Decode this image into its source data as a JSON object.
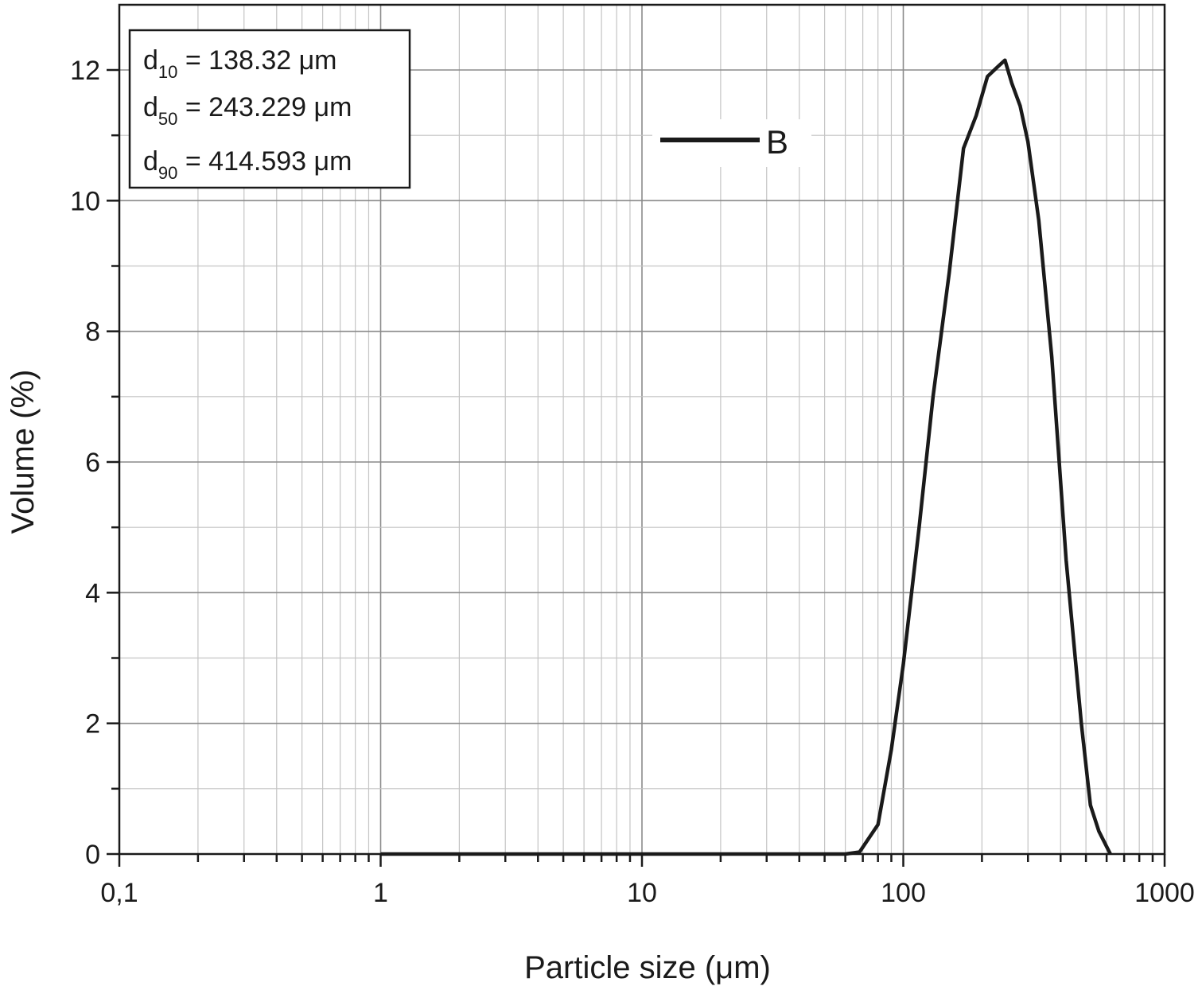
{
  "chart_data": {
    "type": "line",
    "xlabel": "Particle size (μm)",
    "ylabel": "Volume (%)",
    "x_scale": "log",
    "xlim": [
      0.1,
      1000
    ],
    "ylim": [
      0,
      12.9
    ],
    "x_ticks": [
      {
        "value": 0.1,
        "label": "0,1"
      },
      {
        "value": 1,
        "label": "1"
      },
      {
        "value": 10,
        "label": "10"
      },
      {
        "value": 100,
        "label": "100"
      },
      {
        "value": 1000,
        "label": "1000"
      }
    ],
    "y_ticks": [
      {
        "value": 0,
        "label": "0"
      },
      {
        "value": 2,
        "label": "2"
      },
      {
        "value": 4,
        "label": "4"
      },
      {
        "value": 6,
        "label": "6"
      },
      {
        "value": 8,
        "label": "8"
      },
      {
        "value": 10,
        "label": "10"
      },
      {
        "value": 12,
        "label": "12"
      }
    ],
    "grid": true,
    "legend_position": "top-center",
    "series": [
      {
        "name": "B",
        "color": "#1a1a1a",
        "x": [
          1,
          60,
          68,
          80,
          90,
          100,
          115,
          130,
          150,
          170,
          190,
          210,
          230,
          245,
          260,
          280,
          300,
          330,
          370,
          420,
          480,
          520,
          560,
          620
        ],
        "y": [
          0,
          0,
          0.03,
          0.45,
          1.6,
          2.9,
          5.0,
          7.0,
          8.9,
          10.8,
          11.3,
          11.9,
          12.05,
          12.15,
          11.8,
          11.45,
          10.9,
          9.7,
          7.6,
          4.5,
          2.0,
          0.75,
          0.35,
          0
        ]
      }
    ],
    "annotation_box": {
      "position": "top-left",
      "lines": [
        {
          "base": "d",
          "sub": "10",
          "text": " = 138.32 μm"
        },
        {
          "base": "d",
          "sub": "50",
          "text": " = 243.229 μm"
        },
        {
          "base": "d",
          "sub": "90",
          "text": " = 414.593 μm"
        }
      ]
    }
  }
}
